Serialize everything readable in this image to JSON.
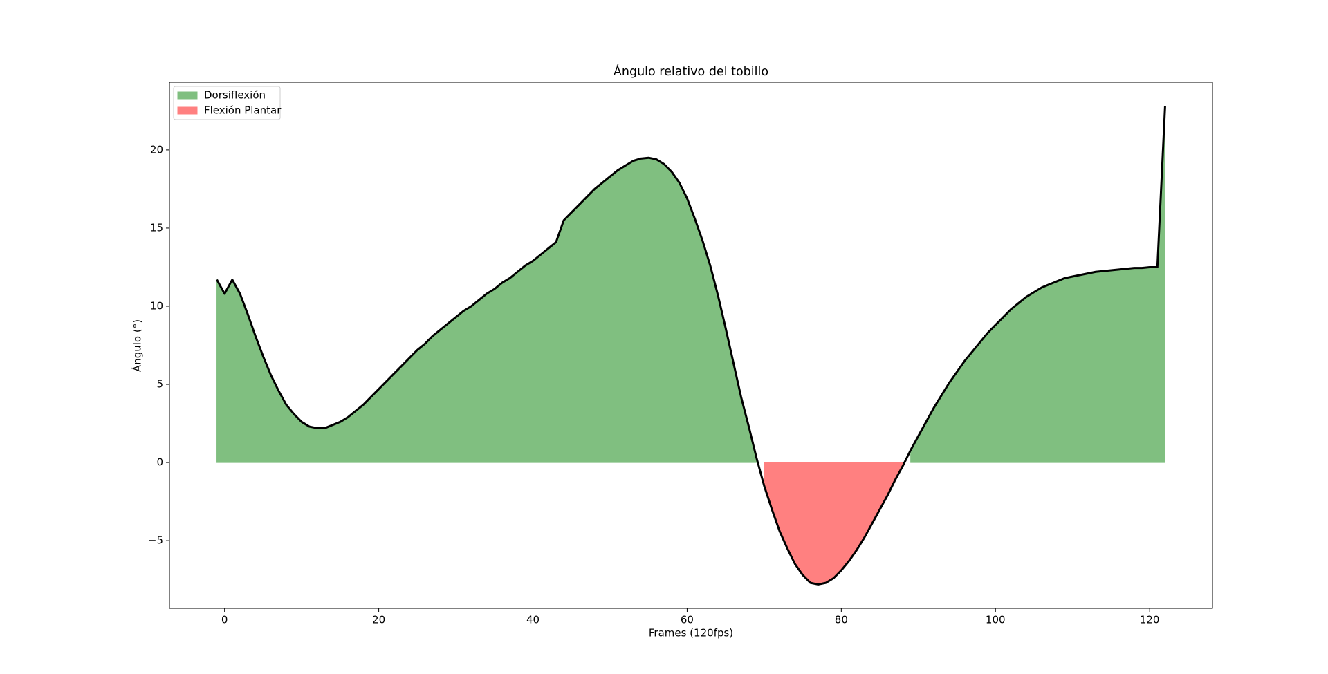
{
  "chart_data": {
    "type": "area",
    "title": "Ángulo relativo del tobillo",
    "xlabel": "Frames (120fps)",
    "ylabel": "Ángulo (°)",
    "x": [
      -1,
      0,
      1,
      2,
      3,
      4,
      5,
      6,
      7,
      8,
      9,
      10,
      11,
      12,
      13,
      14,
      15,
      16,
      17,
      18,
      19,
      20,
      21,
      22,
      23,
      24,
      25,
      26,
      27,
      28,
      29,
      30,
      31,
      32,
      33,
      34,
      35,
      36,
      37,
      38,
      39,
      40,
      41,
      42,
      43,
      44,
      45,
      46,
      47,
      48,
      49,
      50,
      51,
      52,
      53,
      54,
      55,
      56,
      57,
      58,
      59,
      60,
      61,
      62,
      63,
      64,
      65,
      66,
      67,
      68,
      69,
      70,
      71,
      72,
      73,
      74,
      75,
      76,
      77,
      78,
      79,
      80,
      81,
      82,
      83,
      84,
      85,
      86,
      87,
      88,
      89,
      90,
      91,
      92,
      93,
      94,
      95,
      96,
      97,
      98,
      99,
      100,
      101,
      102,
      103,
      104,
      105,
      106,
      107,
      108,
      109,
      110,
      111,
      112,
      113,
      114,
      115,
      116,
      117,
      118,
      119,
      120,
      121,
      122
    ],
    "values": [
      11.7,
      10.8,
      11.7,
      10.8,
      9.5,
      8.1,
      6.8,
      5.6,
      4.6,
      3.7,
      3.1,
      2.6,
      2.3,
      2.2,
      2.2,
      2.4,
      2.6,
      2.9,
      3.3,
      3.7,
      4.2,
      4.7,
      5.2,
      5.7,
      6.2,
      6.7,
      7.2,
      7.6,
      8.1,
      8.5,
      8.9,
      9.3,
      9.7,
      10.0,
      10.4,
      10.8,
      11.1,
      11.5,
      11.8,
      12.2,
      12.6,
      12.9,
      13.3,
      13.7,
      14.1,
      15.5,
      16.0,
      16.5,
      17.0,
      17.5,
      17.9,
      18.3,
      18.7,
      19.0,
      19.3,
      19.45,
      19.5,
      19.4,
      19.1,
      18.6,
      17.9,
      16.9,
      15.6,
      14.2,
      12.6,
      10.7,
      8.6,
      6.4,
      4.2,
      2.3,
      0.3,
      -1.5,
      -3.0,
      -4.4,
      -5.5,
      -6.5,
      -7.2,
      -7.7,
      -7.8,
      -7.7,
      -7.4,
      -6.9,
      -6.3,
      -5.6,
      -4.8,
      -3.9,
      -3.0,
      -2.1,
      -1.1,
      -0.2,
      0.8,
      1.7,
      2.6,
      3.5,
      4.3,
      5.1,
      5.8,
      6.5,
      7.1,
      7.7,
      8.3,
      8.8,
      9.3,
      9.8,
      10.2,
      10.6,
      10.9,
      11.2,
      11.4,
      11.6,
      11.8,
      11.9,
      12.0,
      12.1,
      12.2,
      12.25,
      12.3,
      12.35,
      12.4,
      12.45,
      12.45,
      12.5,
      12.5,
      22.8
    ],
    "line_color": "#000000",
    "series": [
      {
        "name": "Dorsiflexión",
        "color": "#80bf80"
      },
      {
        "name": "Flexión Plantar",
        "color": "#ff8080"
      }
    ],
    "xlim": [
      -7.15,
      128.15
    ],
    "ylim": [
      -9.33,
      24.33
    ],
    "xticks": [
      0,
      20,
      40,
      60,
      80,
      100,
      120
    ],
    "yticks": [
      {
        "value": -5,
        "label": "−5"
      },
      0,
      5,
      10,
      15,
      20
    ],
    "legend": "upper left"
  }
}
